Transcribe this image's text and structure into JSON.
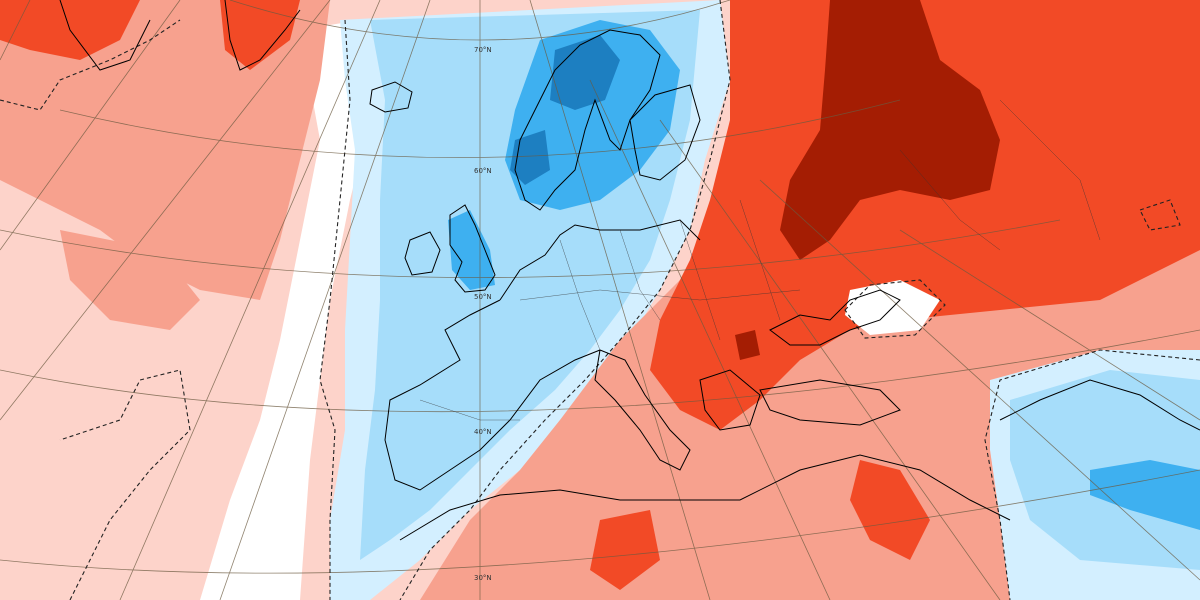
{
  "map": {
    "latitude_labels": [
      "70°N",
      "60°N",
      "50°N",
      "40°N",
      "30°N"
    ]
  },
  "colors": {
    "warm_strong": "#a41d03",
    "warm_medium": "#f24a26",
    "warm_light": "#f7a18e",
    "warm_pale": "#fdd3ca",
    "neutral": "#ffffff",
    "cool_pale": "#d3efff",
    "cool_light": "#a6ddfa",
    "cool_medium": "#3eb0f0",
    "cool_strong": "#1d7fc1",
    "coastline": "#000000",
    "graticule": "#6b5a40"
  }
}
